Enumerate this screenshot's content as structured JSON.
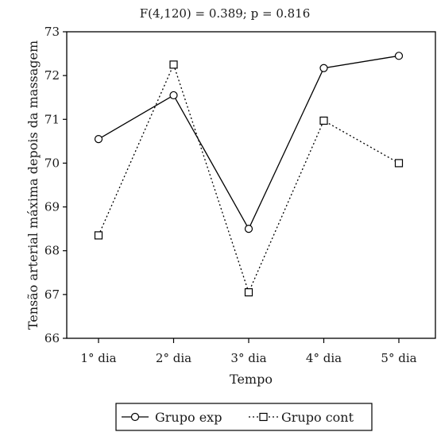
{
  "chart_data": {
    "type": "line",
    "title": "F(4,120) = 0.389; p = 0.816",
    "xlabel": "Tempo",
    "ylabel": "Tensão arterial máxima depois da massagem",
    "categories": [
      "1° dia",
      "2° dia",
      "3° dia",
      "4° dia",
      "5° dia"
    ],
    "ylim": [
      66,
      73
    ],
    "yticks": [
      66,
      67,
      68,
      69,
      70,
      71,
      72,
      73
    ],
    "grid": false,
    "legend_position": "bottom",
    "series": [
      {
        "name": "Grupo exp",
        "values": [
          70.55,
          71.55,
          68.5,
          72.17,
          72.45
        ],
        "line_style": "solid",
        "marker": "circle",
        "color": "#000000"
      },
      {
        "name": "Grupo cont",
        "values": [
          68.35,
          72.25,
          67.05,
          70.97,
          70.0
        ],
        "line_style": "dotted",
        "marker": "square",
        "color": "#000000"
      }
    ]
  }
}
